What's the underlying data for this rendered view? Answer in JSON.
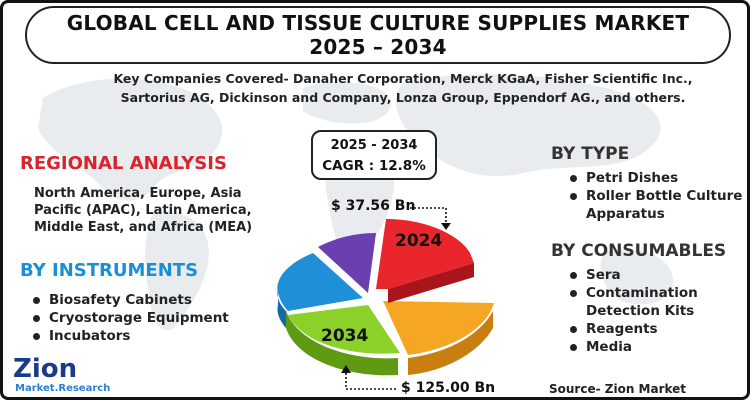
{
  "title": {
    "line1": "GLOBAL CELL AND TISSUE CULTURE SUPPLIES MARKET",
    "line2": "2025 – 2034"
  },
  "companies": {
    "line1": "Key Companies Covered- Danaher Corporation, Merck KGaA, Fisher Scientific Inc.,",
    "line2": "Sartorius AG, Dickinson and Company, Lonza Group, Eppendorf AG., and others."
  },
  "cagr": {
    "period": "2025 - 2034",
    "value": "CAGR : 12.8%"
  },
  "regional": {
    "heading": "REGIONAL ANALYSIS",
    "text": "North America, Europe, Asia Pacific (APAC), Latin America, Middle East, and Africa (MEA)"
  },
  "instruments": {
    "heading": "BY INSTRUMENTS",
    "items": [
      "Biosafety Cabinets",
      "Cryostorage Equipment",
      "Incubators"
    ]
  },
  "by_type": {
    "heading": "BY TYPE",
    "items": [
      "Petri Dishes",
      "Roller Bottle Culture Apparatus"
    ]
  },
  "by_consumables": {
    "heading": "BY CONSUMABLES",
    "items": [
      "Sera",
      "Contamination Detection Kits",
      "Reagents",
      "Media"
    ]
  },
  "pie": {
    "label_2024": "2024",
    "label_2034": "2034",
    "value_2024": "$ 37.56 Bn",
    "value_2034": "$ 125.00 Bn",
    "colors": {
      "red": "#e8262b",
      "orange": "#f5a623",
      "green": "#8bd12a",
      "blue": "#1f8fd8",
      "purple": "#6a3fb0"
    }
  },
  "source": "Source- Zion Market Research",
  "logo": {
    "name": "Zion",
    "sub": "Market.Research"
  }
}
